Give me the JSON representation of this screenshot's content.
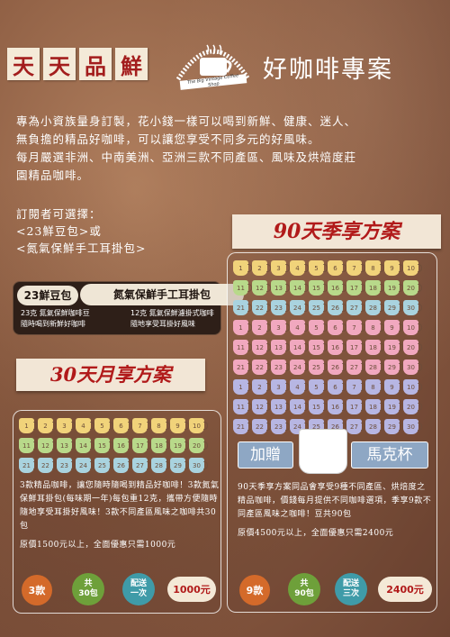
{
  "header": {
    "tag_chars": [
      "天",
      "天",
      "品",
      "鮮"
    ],
    "logo_text": "The Big Vintage Coffee Shop",
    "title": "好咖啡專案"
  },
  "intro": {
    "line1": "專為小資族量身訂製，花小錢一樣可以喝到新鮮、健康、迷人、",
    "line2": "無負擔的精品好咖啡，可以讓您享受不同多元的好風味。",
    "line3": "每月嚴選非洲、中南美洲、亞洲三款不同產區、風味及烘焙度莊",
    "line4": "園精品咖啡。"
  },
  "options": {
    "line1": "訂閱者可選擇：",
    "line2": "<23鮮豆包>或",
    "line3": "<氮氣保鮮手工耳掛包>"
  },
  "products": {
    "bean_label": "23鮮豆包",
    "drip_label": "氮氣保鮮手工耳掛包",
    "bean_desc1": "23克 氮氣保鮮咖啡豆",
    "bean_desc2": "隨時喝到新鮮好咖啡",
    "drip_desc1": "12克 氮氣保鮮濾掛式咖啡",
    "drip_desc2": "隨地享受耳掛好風味"
  },
  "plan90": {
    "title": "90天季享方案",
    "gift_left": "加贈",
    "gift_right": "馬克杯",
    "desc": "90天季享方案同品會享受9種不同產區、烘焙度之精品咖啡，價錢每月提供不同咖啡選項，季享9款不同產區風味之咖啡！豆共90包",
    "price_line": "原價4500元以上，全面優惠只需2400元",
    "badge_count": "9款",
    "badge_packs_a": "共",
    "badge_packs_b": "90包",
    "badge_ship_a": "配送",
    "badge_ship_b": "三次",
    "badge_price": "2400元"
  },
  "plan30": {
    "title": "30天月享方案",
    "desc": "3款精品咖啡，讓您隨時隨喝到精品好咖啡！3款氮氣保鮮耳掛包(每味期一年)每包重12克，攜帶方便隨時隨地享受耳掛好風味！3款不同產區風味之咖啡共30包",
    "price_line": "原價1500元以上，全面優惠只需1000元",
    "badge_count": "3款",
    "badge_packs_a": "共",
    "badge_packs_b": "30包",
    "badge_ship_a": "配送",
    "badge_ship_b": "一次",
    "badge_price": "1000元"
  },
  "cup_colors": {
    "yellow": "#f1d37a",
    "green": "#b8d98a",
    "blue": "#a9d3df",
    "pink": "#f1a8bf",
    "lavender": "#b7b6e3"
  }
}
